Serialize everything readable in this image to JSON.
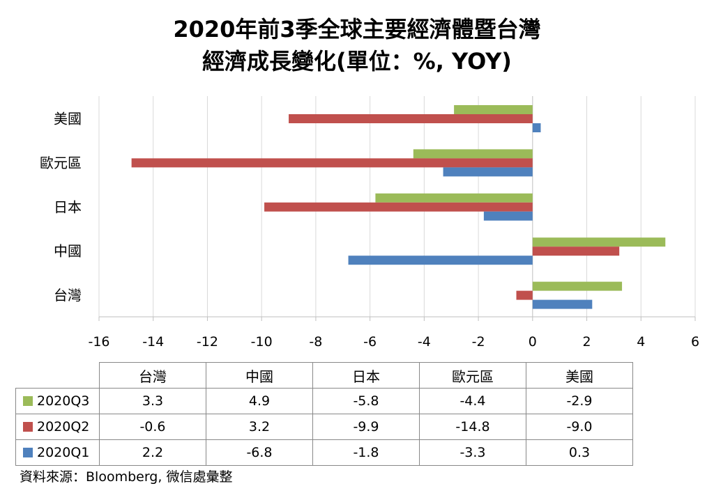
{
  "title_line1": "2020年前3季全球主要經濟體暨台灣",
  "title_line2": "經濟成長變化(單位：%, YOY)",
  "source": "資料來源：Bloomberg, 微信處彙整",
  "chart_data": {
    "type": "bar",
    "orientation": "horizontal",
    "title": "2020年前3季全球主要經濟體暨台灣 經濟成長變化(單位：%, YOY)",
    "categories": [
      "美國",
      "歐元區",
      "日本",
      "中國",
      "台灣"
    ],
    "table_columns": [
      "台灣",
      "中國",
      "日本",
      "歐元區",
      "美國"
    ],
    "xlim": [
      -16,
      6
    ],
    "xticks": [
      -16,
      -14,
      -12,
      -10,
      -8,
      -6,
      -4,
      -2,
      0,
      2,
      4,
      6
    ],
    "grid": "vertical",
    "series": [
      {
        "name": "2020Q3",
        "color": "#9bbb59",
        "values": {
          "台灣": 3.3,
          "中國": 4.9,
          "日本": -5.8,
          "歐元區": -4.4,
          "美國": -2.9
        }
      },
      {
        "name": "2020Q2",
        "color": "#c0504d",
        "values": {
          "台灣": -0.6,
          "中國": 3.2,
          "日本": -9.9,
          "歐元區": -14.8,
          "美國": -9.0
        }
      },
      {
        "name": "2020Q1",
        "color": "#4f81bd",
        "values": {
          "台灣": 2.2,
          "中國": -6.8,
          "日本": -1.8,
          "歐元區": -3.3,
          "美國": 0.3
        }
      }
    ]
  }
}
